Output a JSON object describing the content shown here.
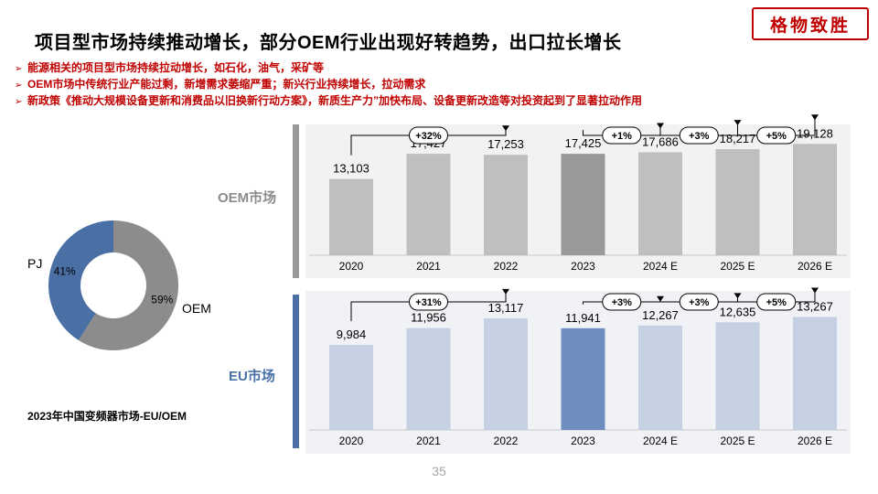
{
  "title": "项目型市场持续推动增长，部分OEM行业出现好转趋势，出口拉长增长",
  "logo_text": "格物致胜",
  "bullets": [
    "能源相关的项目型市场持续拉动增长，如石化，油气，采矿等",
    "OEM市场中传统行业产能过剩，新增需求萎缩严重；新兴行业持续增长，拉动需求",
    "新政策《推动大规模设备更新和消费品以旧换新行动方案》，新质生产力”加快布局、设备更新改造等对投资起到了显著拉动作用"
  ],
  "bullet_marker": "➢",
  "page_number": "35",
  "colors": {
    "title_red": "#c00000",
    "oem_bar": "#bfbfbf",
    "oem_highlight": "#999999",
    "oem_panel": "#f2f2f2",
    "oem_label": "#8c8c8c",
    "eu_bar": "#c5d0e3",
    "eu_highlight": "#6d8ebf",
    "eu_panel": "#f0f2f6",
    "eu_label": "#4a6fa5",
    "donut_pj": "#4a6fa5",
    "donut_oem": "#8c8c8c"
  },
  "chart_data": [
    {
      "type": "pie",
      "subtype": "donut",
      "title": "2023年中国变频器市场-EU/OEM",
      "slices": [
        {
          "name": "PJ",
          "value": 41,
          "label": "41%"
        },
        {
          "name": "OEM",
          "value": 59,
          "label": "59%"
        }
      ]
    },
    {
      "type": "bar",
      "title": "OEM市场",
      "categories": [
        "2020",
        "2021",
        "2022",
        "2023",
        "2024 E",
        "2025 E",
        "2026 E"
      ],
      "values": [
        13103,
        17427,
        17253,
        17425,
        17686,
        18217,
        19128
      ],
      "value_labels": [
        "13,103",
        "17,427",
        "17,253",
        "17,425",
        "17,686",
        "18,217",
        "19,128"
      ],
      "highlight_category": "2023",
      "growth_annotations": [
        {
          "from": "2020",
          "to": "2022",
          "label": "+32%"
        },
        {
          "from": "2023",
          "to": "2024 E",
          "label": "+1%"
        },
        {
          "from": "2024 E",
          "to": "2025 E",
          "label": "+3%"
        },
        {
          "from": "2025 E",
          "to": "2026 E",
          "label": "+5%"
        }
      ],
      "ylim": [
        0,
        22000
      ],
      "grid": false
    },
    {
      "type": "bar",
      "title": "EU市场",
      "categories": [
        "2020",
        "2021",
        "2022",
        "2023",
        "2024 E",
        "2025 E",
        "2026 E"
      ],
      "values": [
        9984,
        11956,
        13117,
        11941,
        12267,
        12635,
        13267
      ],
      "value_labels": [
        "9,984",
        "11,956",
        "13,117",
        "11,941",
        "12,267",
        "12,635",
        "13,267"
      ],
      "highlight_category": "2023",
      "growth_annotations": [
        {
          "from": "2020",
          "to": "2022",
          "label": "+31%"
        },
        {
          "from": "2023",
          "to": "2024 E",
          "label": "+3%"
        },
        {
          "from": "2024 E",
          "to": "2025 E",
          "label": "+3%"
        },
        {
          "from": "2025 E",
          "to": "2026 E",
          "label": "+5%"
        }
      ],
      "ylim": [
        0,
        16000
      ],
      "grid": false
    }
  ]
}
